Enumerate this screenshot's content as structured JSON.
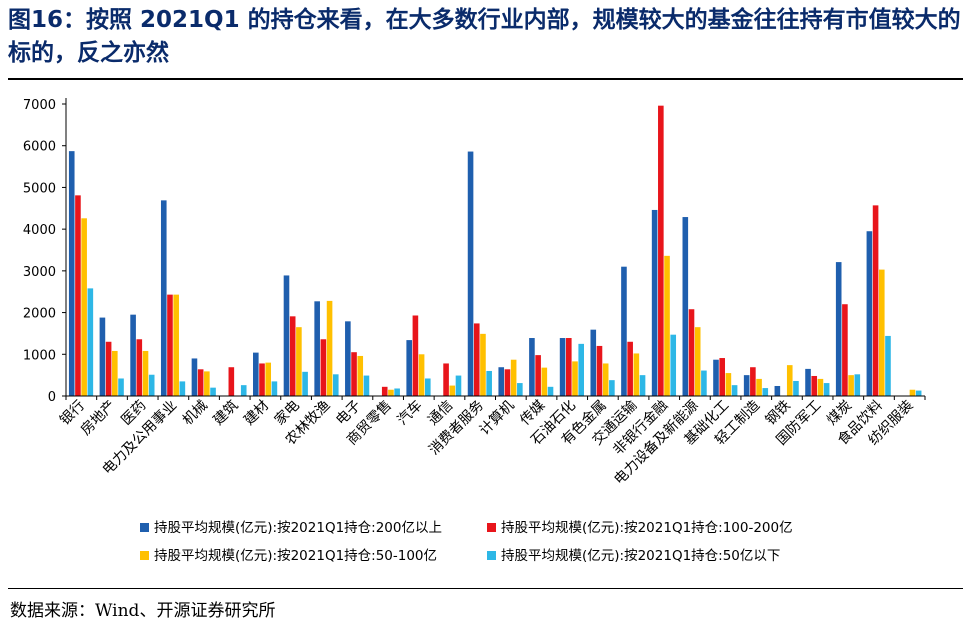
{
  "figure": {
    "title": "图16：按照 2021Q1 的持仓来看，在大多数行业内部，规模较大的基金往往持有市值较大的标的，反之亦然",
    "source": "数据来源：Wind、开源证券研究所"
  },
  "chart_data": {
    "type": "bar",
    "title": "",
    "xlabel": "",
    "ylabel": "",
    "ylim": [
      0,
      7000
    ],
    "yticks": [
      0,
      1000,
      2000,
      3000,
      4000,
      5000,
      6000,
      7000
    ],
    "grid": false,
    "legend_position": "bottom",
    "categories": [
      "银行",
      "房地产",
      "医药",
      "电力及公用事业",
      "机械",
      "建筑",
      "建材",
      "家电",
      "农林牧渔",
      "电子",
      "商贸零售",
      "汽车",
      "通信",
      "消费者服务",
      "计算机",
      "传媒",
      "石油石化",
      "有色金属",
      "交通运输",
      "非银行金融",
      "电力设备及新能源",
      "基础化工",
      "轻工制造",
      "钢铁",
      "国防军工",
      "煤炭",
      "食品饮料",
      "纺织服装"
    ],
    "series": [
      {
        "name": "持股平均规模(亿元):按2021Q1持仓:200亿以上",
        "color": "#1f5fae",
        "values": [
          5870,
          1880,
          1950,
          4690,
          900,
          0,
          1040,
          2890,
          2270,
          1790,
          0,
          1340,
          0,
          5860,
          690,
          1390,
          1390,
          1590,
          3100,
          4460,
          4290,
          870,
          500,
          240,
          650,
          3210,
          3950,
          0
        ]
      },
      {
        "name": "持股平均规模(亿元):按2021Q1持仓:100-200亿",
        "color": "#e8151b",
        "values": [
          4810,
          1300,
          1360,
          2430,
          640,
          690,
          780,
          1910,
          1360,
          1050,
          220,
          1930,
          780,
          1740,
          640,
          980,
          1390,
          1200,
          1300,
          6960,
          2080,
          910,
          690,
          0,
          480,
          2200,
          4570,
          0
        ]
      },
      {
        "name": "持股平均规模(亿元):按2021Q1持仓:50-100亿",
        "color": "#ffc000",
        "values": [
          4260,
          1080,
          1080,
          2430,
          590,
          0,
          800,
          1650,
          2280,
          960,
          150,
          1000,
          250,
          1490,
          870,
          680,
          830,
          780,
          1020,
          3360,
          1650,
          550,
          410,
          740,
          410,
          500,
          3030,
          150
        ]
      },
      {
        "name": "持股平均规模(亿元):按2021Q1持仓:50亿以下",
        "color": "#2db7e6",
        "values": [
          2580,
          420,
          510,
          350,
          200,
          260,
          350,
          580,
          520,
          490,
          180,
          420,
          490,
          600,
          310,
          220,
          1250,
          380,
          500,
          1470,
          610,
          260,
          190,
          360,
          310,
          520,
          1440,
          130
        ]
      }
    ]
  }
}
